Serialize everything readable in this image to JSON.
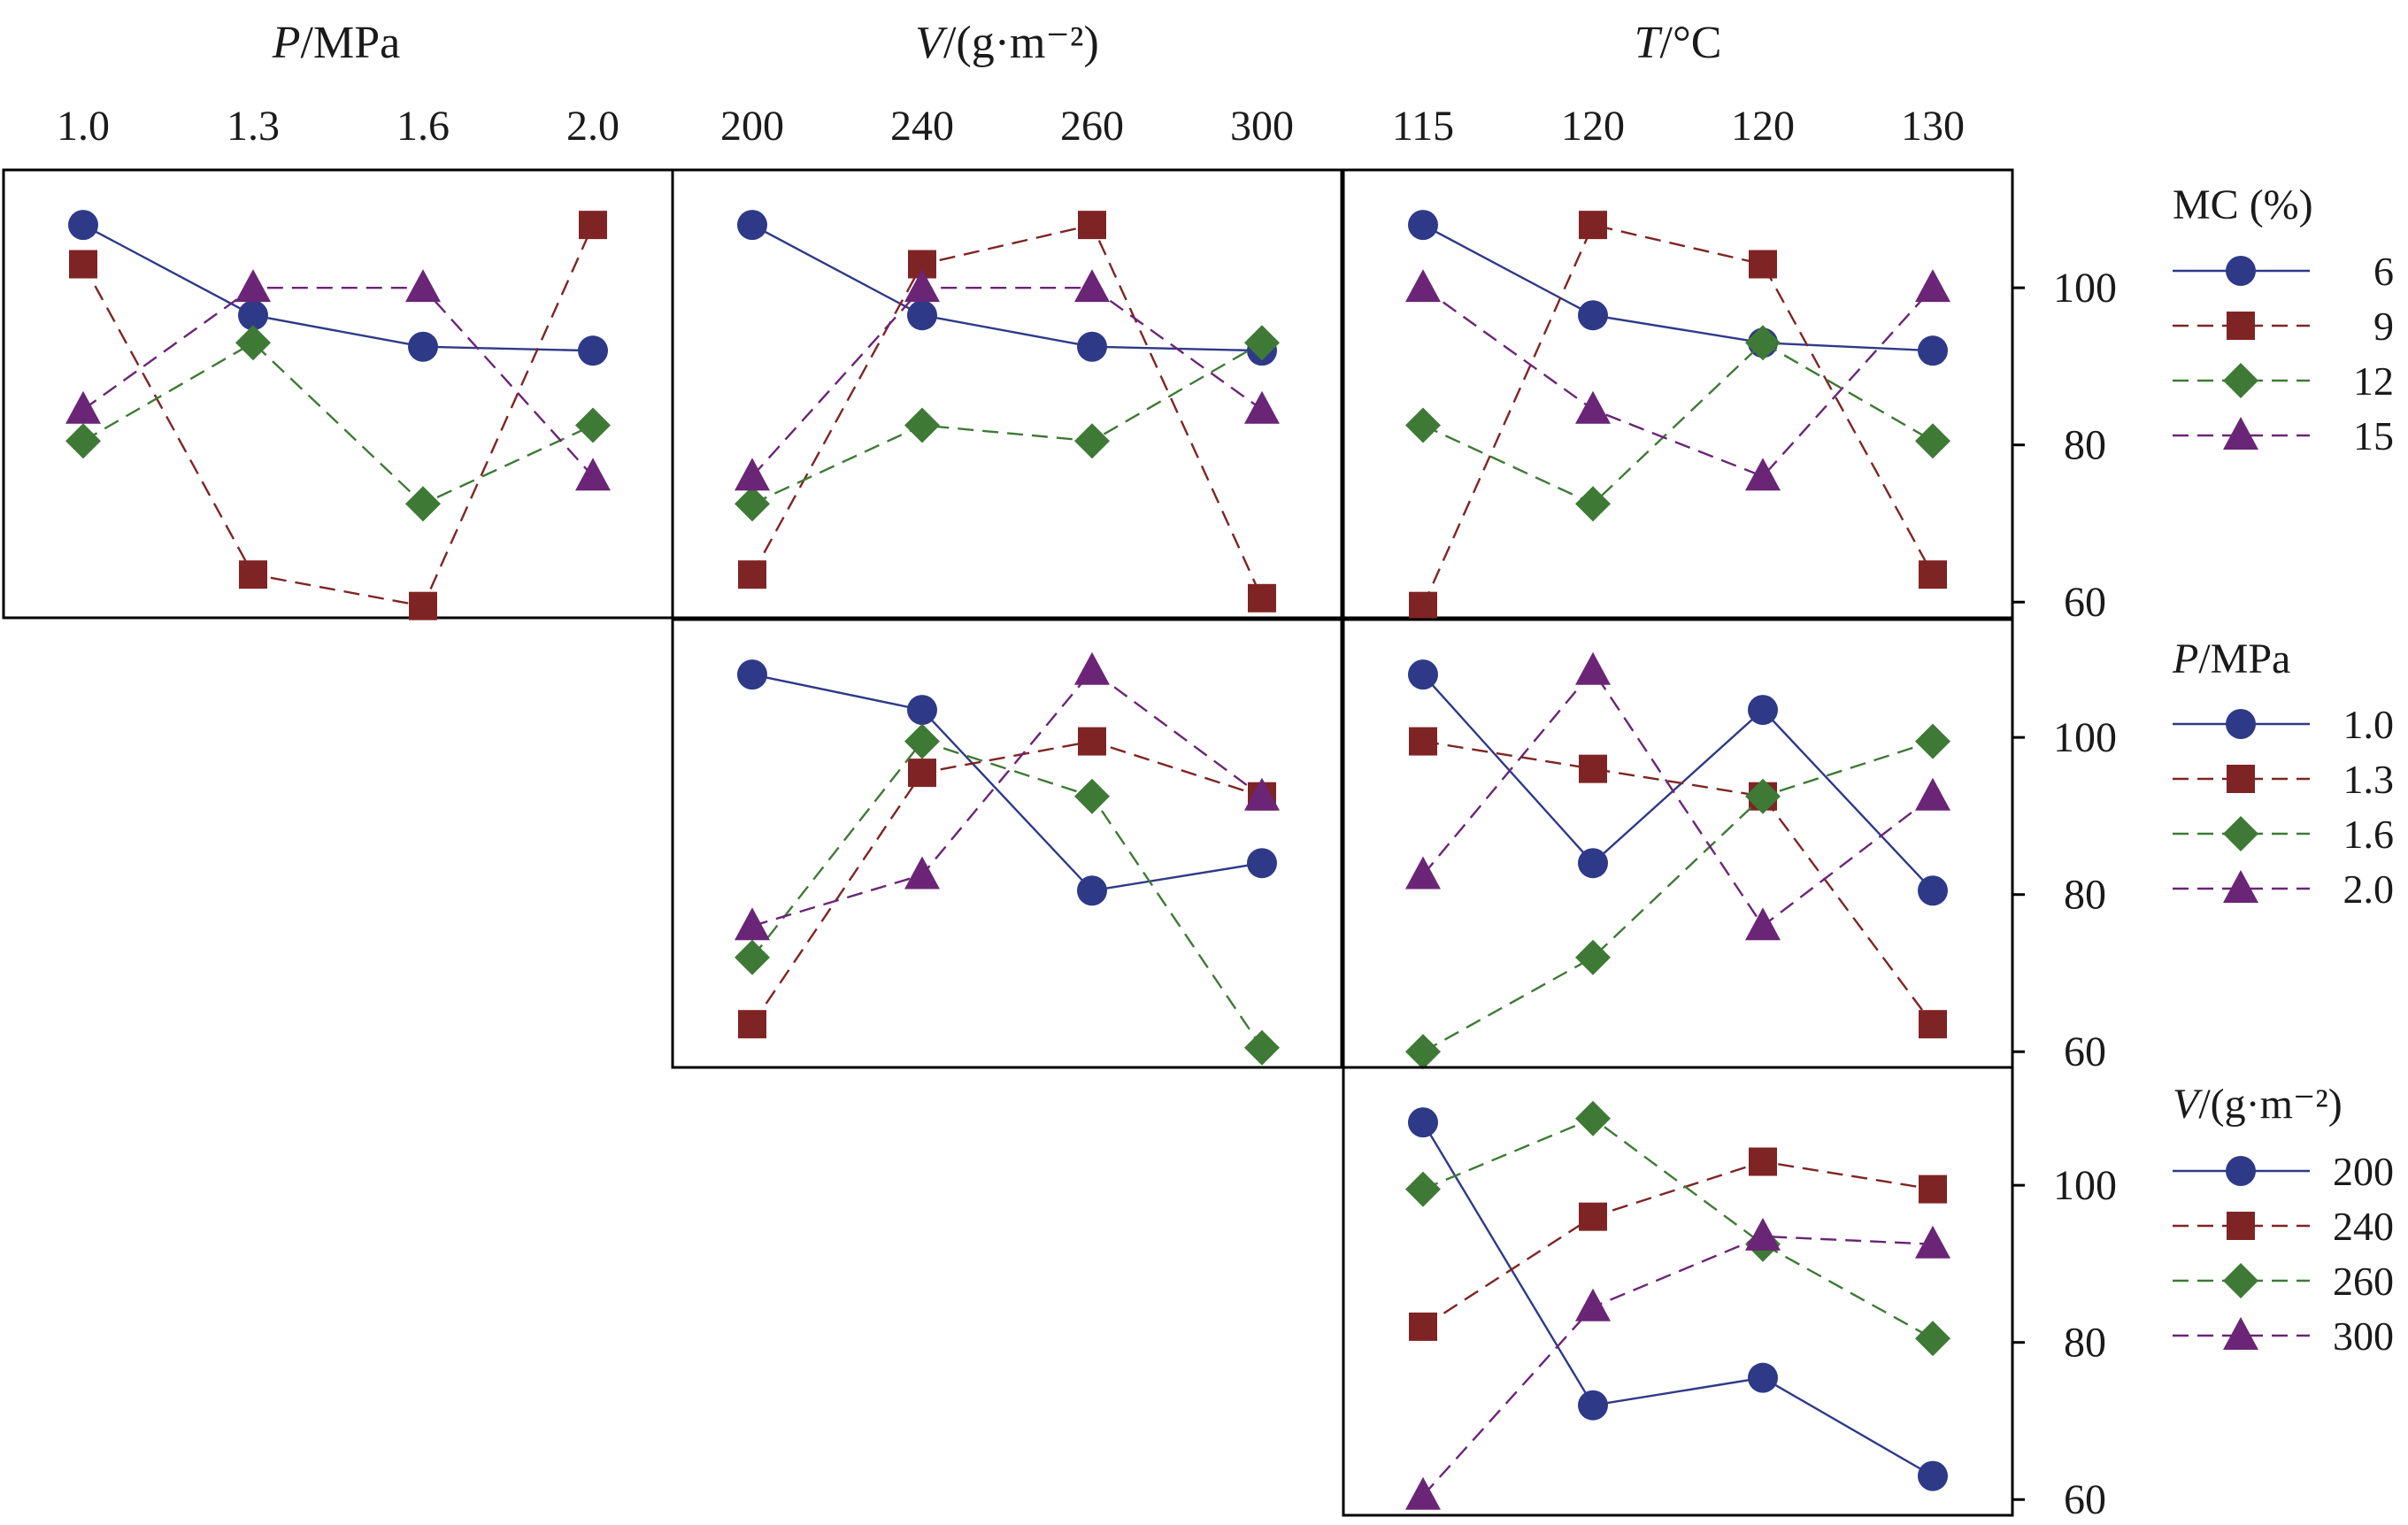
{
  "chart_data": {
    "type": "line",
    "layout": "interaction plot matrix (upper-triangular 3x3 grid)",
    "column_factors": [
      {
        "symbol": "P",
        "unit": "MPa",
        "ticks": [
          "1.0",
          "1.3",
          "1.6",
          "2.0"
        ]
      },
      {
        "symbol": "V",
        "unit": "(g·m⁻²)",
        "ticks": [
          "200",
          "240",
          "260",
          "300"
        ]
      },
      {
        "symbol": "T",
        "unit": "°C",
        "ticks": [
          "115",
          "120",
          "120",
          "130"
        ]
      }
    ],
    "y_axis": {
      "ylim": [
        58,
        115
      ],
      "ticks": [
        "60",
        "80",
        "100"
      ],
      "position": "right"
    },
    "line_styles": [
      "solid",
      "dashed",
      "dashed",
      "dashed"
    ],
    "colors": {
      "series_1": "#2e3a87",
      "series_2": "#7f2424",
      "series_3": "#3e7a35",
      "series_4": "#6a2576",
      "frame": "#000000"
    },
    "markers": [
      "circle",
      "square",
      "diamond",
      "triangle"
    ],
    "legends": [
      {
        "title": "MC (%)",
        "items": [
          "6",
          "9",
          "12",
          "15"
        ]
      },
      {
        "title_symbol": "P",
        "title_unit": "MPa",
        "items": [
          "1.0",
          "1.3",
          "1.6",
          "2.0"
        ]
      },
      {
        "title_symbol": "V",
        "title_unit": "(g·m⁻²)",
        "items": [
          "200",
          "240",
          "260",
          "300"
        ]
      }
    ],
    "panels": [
      {
        "row": 0,
        "col": 0,
        "trace_factor": "MC (%)",
        "x_factor": "P/MPa",
        "series": [
          {
            "name": "6",
            "values": [
              108,
              96.5,
              92.5,
              92
            ]
          },
          {
            "name": "9",
            "values": [
              103,
              63.5,
              59.5,
              108
            ]
          },
          {
            "name": "12",
            "values": [
              80.5,
              93,
              72.5,
              82.5
            ]
          },
          {
            "name": "15",
            "values": [
              84.5,
              100,
              100,
              76
            ]
          }
        ]
      },
      {
        "row": 0,
        "col": 1,
        "trace_factor": "MC (%)",
        "x_factor": "V/(g·m⁻²)",
        "series": [
          {
            "name": "6",
            "values": [
              108,
              96.5,
              92.5,
              92
            ]
          },
          {
            "name": "9",
            "values": [
              63.5,
              103,
              108,
              60.5
            ]
          },
          {
            "name": "12",
            "values": [
              72.5,
              82.5,
              80.5,
              93
            ]
          },
          {
            "name": "15",
            "values": [
              76,
              100,
              100,
              84.5
            ]
          }
        ]
      },
      {
        "row": 0,
        "col": 2,
        "trace_factor": "MC (%)",
        "x_factor": "T/°C",
        "series": [
          {
            "name": "6",
            "values": [
              108,
              96.5,
              93,
              92
            ]
          },
          {
            "name": "9",
            "values": [
              59.5,
              108,
              103,
              63.5
            ]
          },
          {
            "name": "12",
            "values": [
              82.5,
              72.5,
              93,
              80.5
            ]
          },
          {
            "name": "15",
            "values": [
              100,
              84.5,
              76,
              100
            ]
          }
        ]
      },
      {
        "row": 1,
        "col": 1,
        "trace_factor": "P/MPa",
        "x_factor": "V/(g·m⁻²)",
        "series": [
          {
            "name": "1.0",
            "values": [
              108,
              103.5,
              80.5,
              84
            ]
          },
          {
            "name": "1.3",
            "values": [
              63.5,
              95.5,
              99.5,
              92.5
            ]
          },
          {
            "name": "1.6",
            "values": [
              72,
              99.5,
              92.5,
              60.5
            ]
          },
          {
            "name": "2.0",
            "values": [
              76,
              82.5,
              108.5,
              92.5
            ]
          }
        ]
      },
      {
        "row": 1,
        "col": 2,
        "trace_factor": "P/MPa",
        "x_factor": "T/°C",
        "series": [
          {
            "name": "1.0",
            "values": [
              108,
              84,
              103.5,
              80.5
            ]
          },
          {
            "name": "1.3",
            "values": [
              99.5,
              96,
              92.5,
              63.5
            ]
          },
          {
            "name": "1.6",
            "values": [
              60,
              72,
              92.5,
              99.5
            ]
          },
          {
            "name": "2.0",
            "values": [
              82.5,
              108.5,
              76,
              92.5
            ]
          }
        ]
      },
      {
        "row": 2,
        "col": 2,
        "trace_factor": "V/(g·m⁻²)",
        "x_factor": "T/°C",
        "series": [
          {
            "name": "200",
            "values": [
              108,
              72,
              75.5,
              63
            ]
          },
          {
            "name": "240",
            "values": [
              82,
              96,
              103,
              99.5
            ]
          },
          {
            "name": "260",
            "values": [
              99.5,
              108.5,
              92.5,
              80.5
            ]
          },
          {
            "name": "300",
            "values": [
              60.5,
              84.5,
              93.5,
              92.5
            ]
          }
        ]
      }
    ]
  }
}
